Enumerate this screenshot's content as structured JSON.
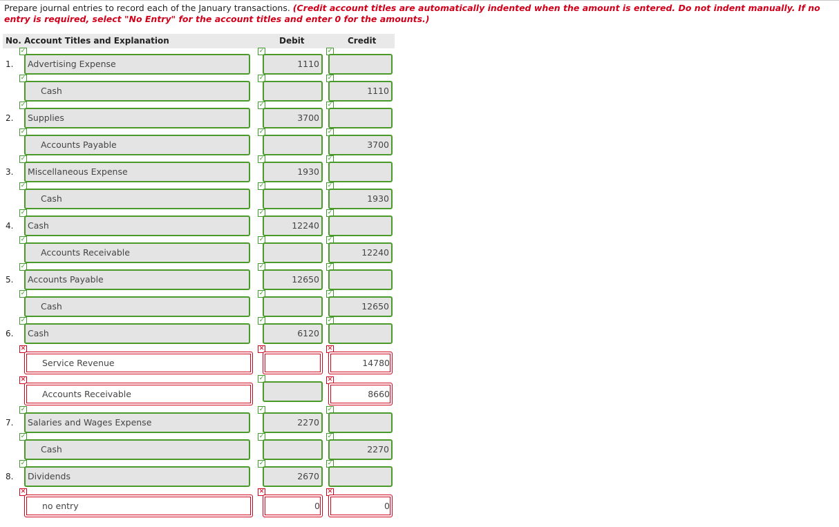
{
  "instructions": {
    "plain": "Prepare journal entries to record each of the January transactions. ",
    "emphasis": "(Credit account titles are automatically indented when the amount is entered. Do not indent manually. If no entry is required, select \"No Entry\" for the account titles and enter 0 for the amounts.)"
  },
  "table": {
    "headers": {
      "account": "No. Account Titles and Explanation",
      "debit": "Debit",
      "credit": "Credit"
    }
  },
  "entries": [
    {
      "no": "1.",
      "account": "Advertising Expense",
      "indent": false,
      "debit": "1110",
      "credit": "",
      "acct_ok": true,
      "debit_ok": true,
      "credit_ok": true
    },
    {
      "no": "",
      "account": "Cash",
      "indent": true,
      "debit": "",
      "credit": "1110",
      "acct_ok": true,
      "debit_ok": true,
      "credit_ok": true
    },
    {
      "no": "2.",
      "account": "Supplies",
      "indent": false,
      "debit": "3700",
      "credit": "",
      "acct_ok": true,
      "debit_ok": true,
      "credit_ok": true
    },
    {
      "no": "",
      "account": "Accounts Payable",
      "indent": true,
      "debit": "",
      "credit": "3700",
      "acct_ok": true,
      "debit_ok": true,
      "credit_ok": true
    },
    {
      "no": "3.",
      "account": "Miscellaneous Expense",
      "indent": false,
      "debit": "1930",
      "credit": "",
      "acct_ok": true,
      "debit_ok": true,
      "credit_ok": true
    },
    {
      "no": "",
      "account": "Cash",
      "indent": true,
      "debit": "",
      "credit": "1930",
      "acct_ok": true,
      "debit_ok": true,
      "credit_ok": true
    },
    {
      "no": "4.",
      "account": "Cash",
      "indent": false,
      "debit": "12240",
      "credit": "",
      "acct_ok": true,
      "debit_ok": true,
      "credit_ok": true
    },
    {
      "no": "",
      "account": "Accounts Receivable",
      "indent": true,
      "debit": "",
      "credit": "12240",
      "acct_ok": true,
      "debit_ok": true,
      "credit_ok": true
    },
    {
      "no": "5.",
      "account": "Accounts Payable",
      "indent": false,
      "debit": "12650",
      "credit": "",
      "acct_ok": true,
      "debit_ok": true,
      "credit_ok": true
    },
    {
      "no": "",
      "account": "Cash",
      "indent": true,
      "debit": "",
      "credit": "12650",
      "acct_ok": true,
      "debit_ok": true,
      "credit_ok": true
    },
    {
      "no": "6.",
      "account": "Cash",
      "indent": false,
      "debit": "6120",
      "credit": "",
      "acct_ok": true,
      "debit_ok": true,
      "credit_ok": true
    },
    {
      "no": "",
      "account": "Service Revenue",
      "indent": true,
      "debit": "",
      "credit": "14780",
      "acct_ok": false,
      "debit_ok": false,
      "credit_ok": false
    },
    {
      "no": "",
      "account": "Accounts Receivable",
      "indent": true,
      "debit": "",
      "credit": "8660",
      "acct_ok": false,
      "debit_ok": true,
      "credit_ok": false
    },
    {
      "no": "7.",
      "account": "Salaries and Wages Expense",
      "indent": false,
      "debit": "2270",
      "credit": "",
      "acct_ok": true,
      "debit_ok": true,
      "credit_ok": true
    },
    {
      "no": "",
      "account": "Cash",
      "indent": true,
      "debit": "",
      "credit": "2270",
      "acct_ok": true,
      "debit_ok": true,
      "credit_ok": true
    },
    {
      "no": "8.",
      "account": "Dividends",
      "indent": false,
      "debit": "2670",
      "credit": "",
      "acct_ok": true,
      "debit_ok": true,
      "credit_ok": true
    },
    {
      "no": "",
      "account": "no entry",
      "indent": true,
      "debit": "0",
      "credit": "0",
      "acct_ok": false,
      "debit_ok": false,
      "credit_ok": false
    }
  ],
  "status_icons": {
    "correct": "check-icon",
    "incorrect": "cross-icon"
  },
  "colors": {
    "correct": "#3f9a2c",
    "incorrect": "#d0021b",
    "emphasis": "#d0021b"
  }
}
